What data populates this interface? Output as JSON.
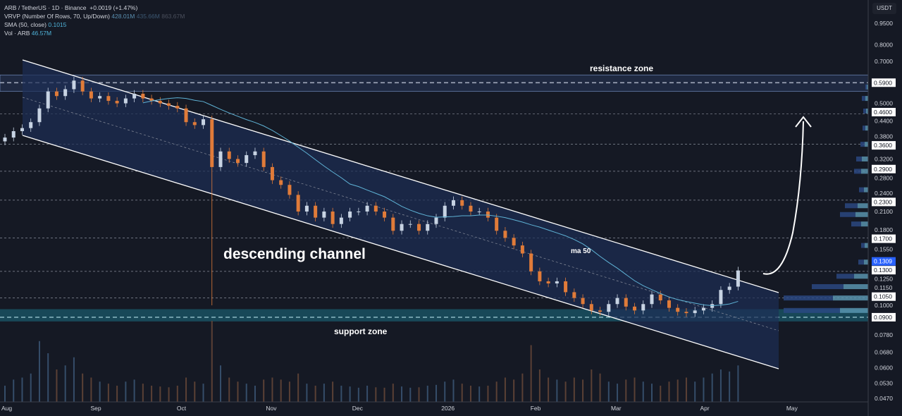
{
  "legend": {
    "symbol": "ARB / TetherUS · 1D · Binance",
    "change": "+0.0019 (+1.47%)",
    "vrvp": "VRVP (Number Of Rows, 70, Up/Down)",
    "vrvp_values": [
      "428.01M",
      "435.66M",
      "863.67M"
    ],
    "sma": "SMA (50, close)",
    "sma_value": "0.1015",
    "vol": "Vol · ARB",
    "vol_value": "46.57M"
  },
  "currency_button": "USDT",
  "annotations": {
    "resistance": "resistance zone",
    "support": "support zone",
    "channel": "descending channel",
    "ma": "ma 50"
  },
  "chart_data": {
    "type": "candlestick",
    "yscale": "log",
    "ylim": [
      0.045,
      1.0
    ],
    "y_ticks": [
      0.95,
      0.8,
      0.7,
      0.5,
      0.44,
      0.38,
      0.32,
      0.28,
      0.24,
      0.21,
      0.18,
      0.155,
      0.125,
      0.115,
      0.1,
      0.078,
      0.068,
      0.06,
      0.053,
      0.047
    ],
    "price_labels": [
      "0.5900",
      "0.4600",
      "0.3600",
      "0.2900",
      "0.2300",
      "0.1700",
      "0.1300",
      "0.1050",
      "0.0900"
    ],
    "last_price": "0.1309",
    "x_labels": [
      {
        "label": "Aug",
        "day": 0
      },
      {
        "label": "Sep",
        "day": 31
      },
      {
        "label": "Oct",
        "day": 61
      },
      {
        "label": "Nov",
        "day": 92
      },
      {
        "label": "Dec",
        "day": 122
      },
      {
        "label": "2026",
        "day": 153
      },
      {
        "label": "Feb",
        "day": 184
      },
      {
        "label": "Mar",
        "day": 212
      },
      {
        "label": "Apr",
        "day": 243
      },
      {
        "label": "May",
        "day": 273
      }
    ],
    "step_days": 3,
    "closes": [
      0.38,
      0.4,
      0.41,
      0.43,
      0.48,
      0.55,
      0.53,
      0.56,
      0.6,
      0.55,
      0.52,
      0.53,
      0.51,
      0.5,
      0.52,
      0.54,
      0.52,
      0.51,
      0.5,
      0.49,
      0.48,
      0.43,
      0.42,
      0.44,
      0.3,
      0.34,
      0.32,
      0.31,
      0.33,
      0.34,
      0.3,
      0.27,
      0.26,
      0.24,
      0.21,
      0.22,
      0.2,
      0.21,
      0.19,
      0.2,
      0.21,
      0.21,
      0.22,
      0.21,
      0.2,
      0.18,
      0.19,
      0.19,
      0.18,
      0.19,
      0.2,
      0.22,
      0.23,
      0.22,
      0.21,
      0.21,
      0.2,
      0.18,
      0.17,
      0.16,
      0.15,
      0.13,
      0.12,
      0.118,
      0.12,
      0.11,
      0.105,
      0.1,
      0.095,
      0.094,
      0.1,
      0.105,
      0.098,
      0.095,
      0.1,
      0.108,
      0.103,
      0.097,
      0.094,
      0.093,
      0.095,
      0.097,
      0.1,
      0.112,
      0.115,
      0.1309
    ],
    "volumes": [
      40,
      55,
      60,
      70,
      150,
      120,
      80,
      90,
      110,
      70,
      60,
      50,
      45,
      40,
      50,
      55,
      45,
      40,
      38,
      36,
      40,
      60,
      50,
      45,
      200,
      90,
      60,
      50,
      45,
      40,
      55,
      60,
      55,
      50,
      70,
      45,
      40,
      45,
      50,
      40,
      38,
      35,
      40,
      36,
      35,
      45,
      38,
      35,
      36,
      40,
      42,
      50,
      55,
      45,
      40,
      38,
      40,
      50,
      60,
      55,
      70,
      140,
      80,
      60,
      55,
      50,
      60,
      55,
      80,
      70,
      50,
      45,
      55,
      60,
      50,
      45,
      40,
      50,
      55,
      60,
      50,
      60,
      70,
      80,
      75,
      90
    ],
    "sma_period_days": 50,
    "levels": {
      "resistance_zone": [
        0.55,
        0.6
      ],
      "support_zone": [
        0.087,
        0.096
      ]
    },
    "vrvp_profile": [
      {
        "price": 0.095,
        "up": 40,
        "down": 80
      },
      {
        "price": 0.105,
        "up": 50,
        "down": 70
      },
      {
        "price": 0.115,
        "up": 35,
        "down": 45
      },
      {
        "price": 0.125,
        "up": 20,
        "down": 25
      },
      {
        "price": 0.14,
        "up": 6,
        "down": 8
      },
      {
        "price": 0.16,
        "up": 5,
        "down": 5
      },
      {
        "price": 0.19,
        "up": 10,
        "down": 14
      },
      {
        "price": 0.205,
        "up": 18,
        "down": 22
      },
      {
        "price": 0.22,
        "up": 15,
        "down": 18
      },
      {
        "price": 0.25,
        "up": 6,
        "down": 7
      },
      {
        "price": 0.29,
        "up": 10,
        "down": 10
      },
      {
        "price": 0.32,
        "up": 9,
        "down": 8
      },
      {
        "price": 0.36,
        "up": 5,
        "down": 6
      },
      {
        "price": 0.41,
        "up": 4,
        "down": 4
      },
      {
        "price": 0.47,
        "up": 3,
        "down": 4
      },
      {
        "price": 0.52,
        "up": 4,
        "down": 5
      },
      {
        "price": 0.57,
        "up": 2,
        "down": 2
      }
    ],
    "colors": {
      "up": "#c7d3e3",
      "down": "#e07b39",
      "sma": "#5fb3d6",
      "channel": "#1c2e55",
      "support": "#1b6f84",
      "resistance": "#2d3f66"
    }
  }
}
